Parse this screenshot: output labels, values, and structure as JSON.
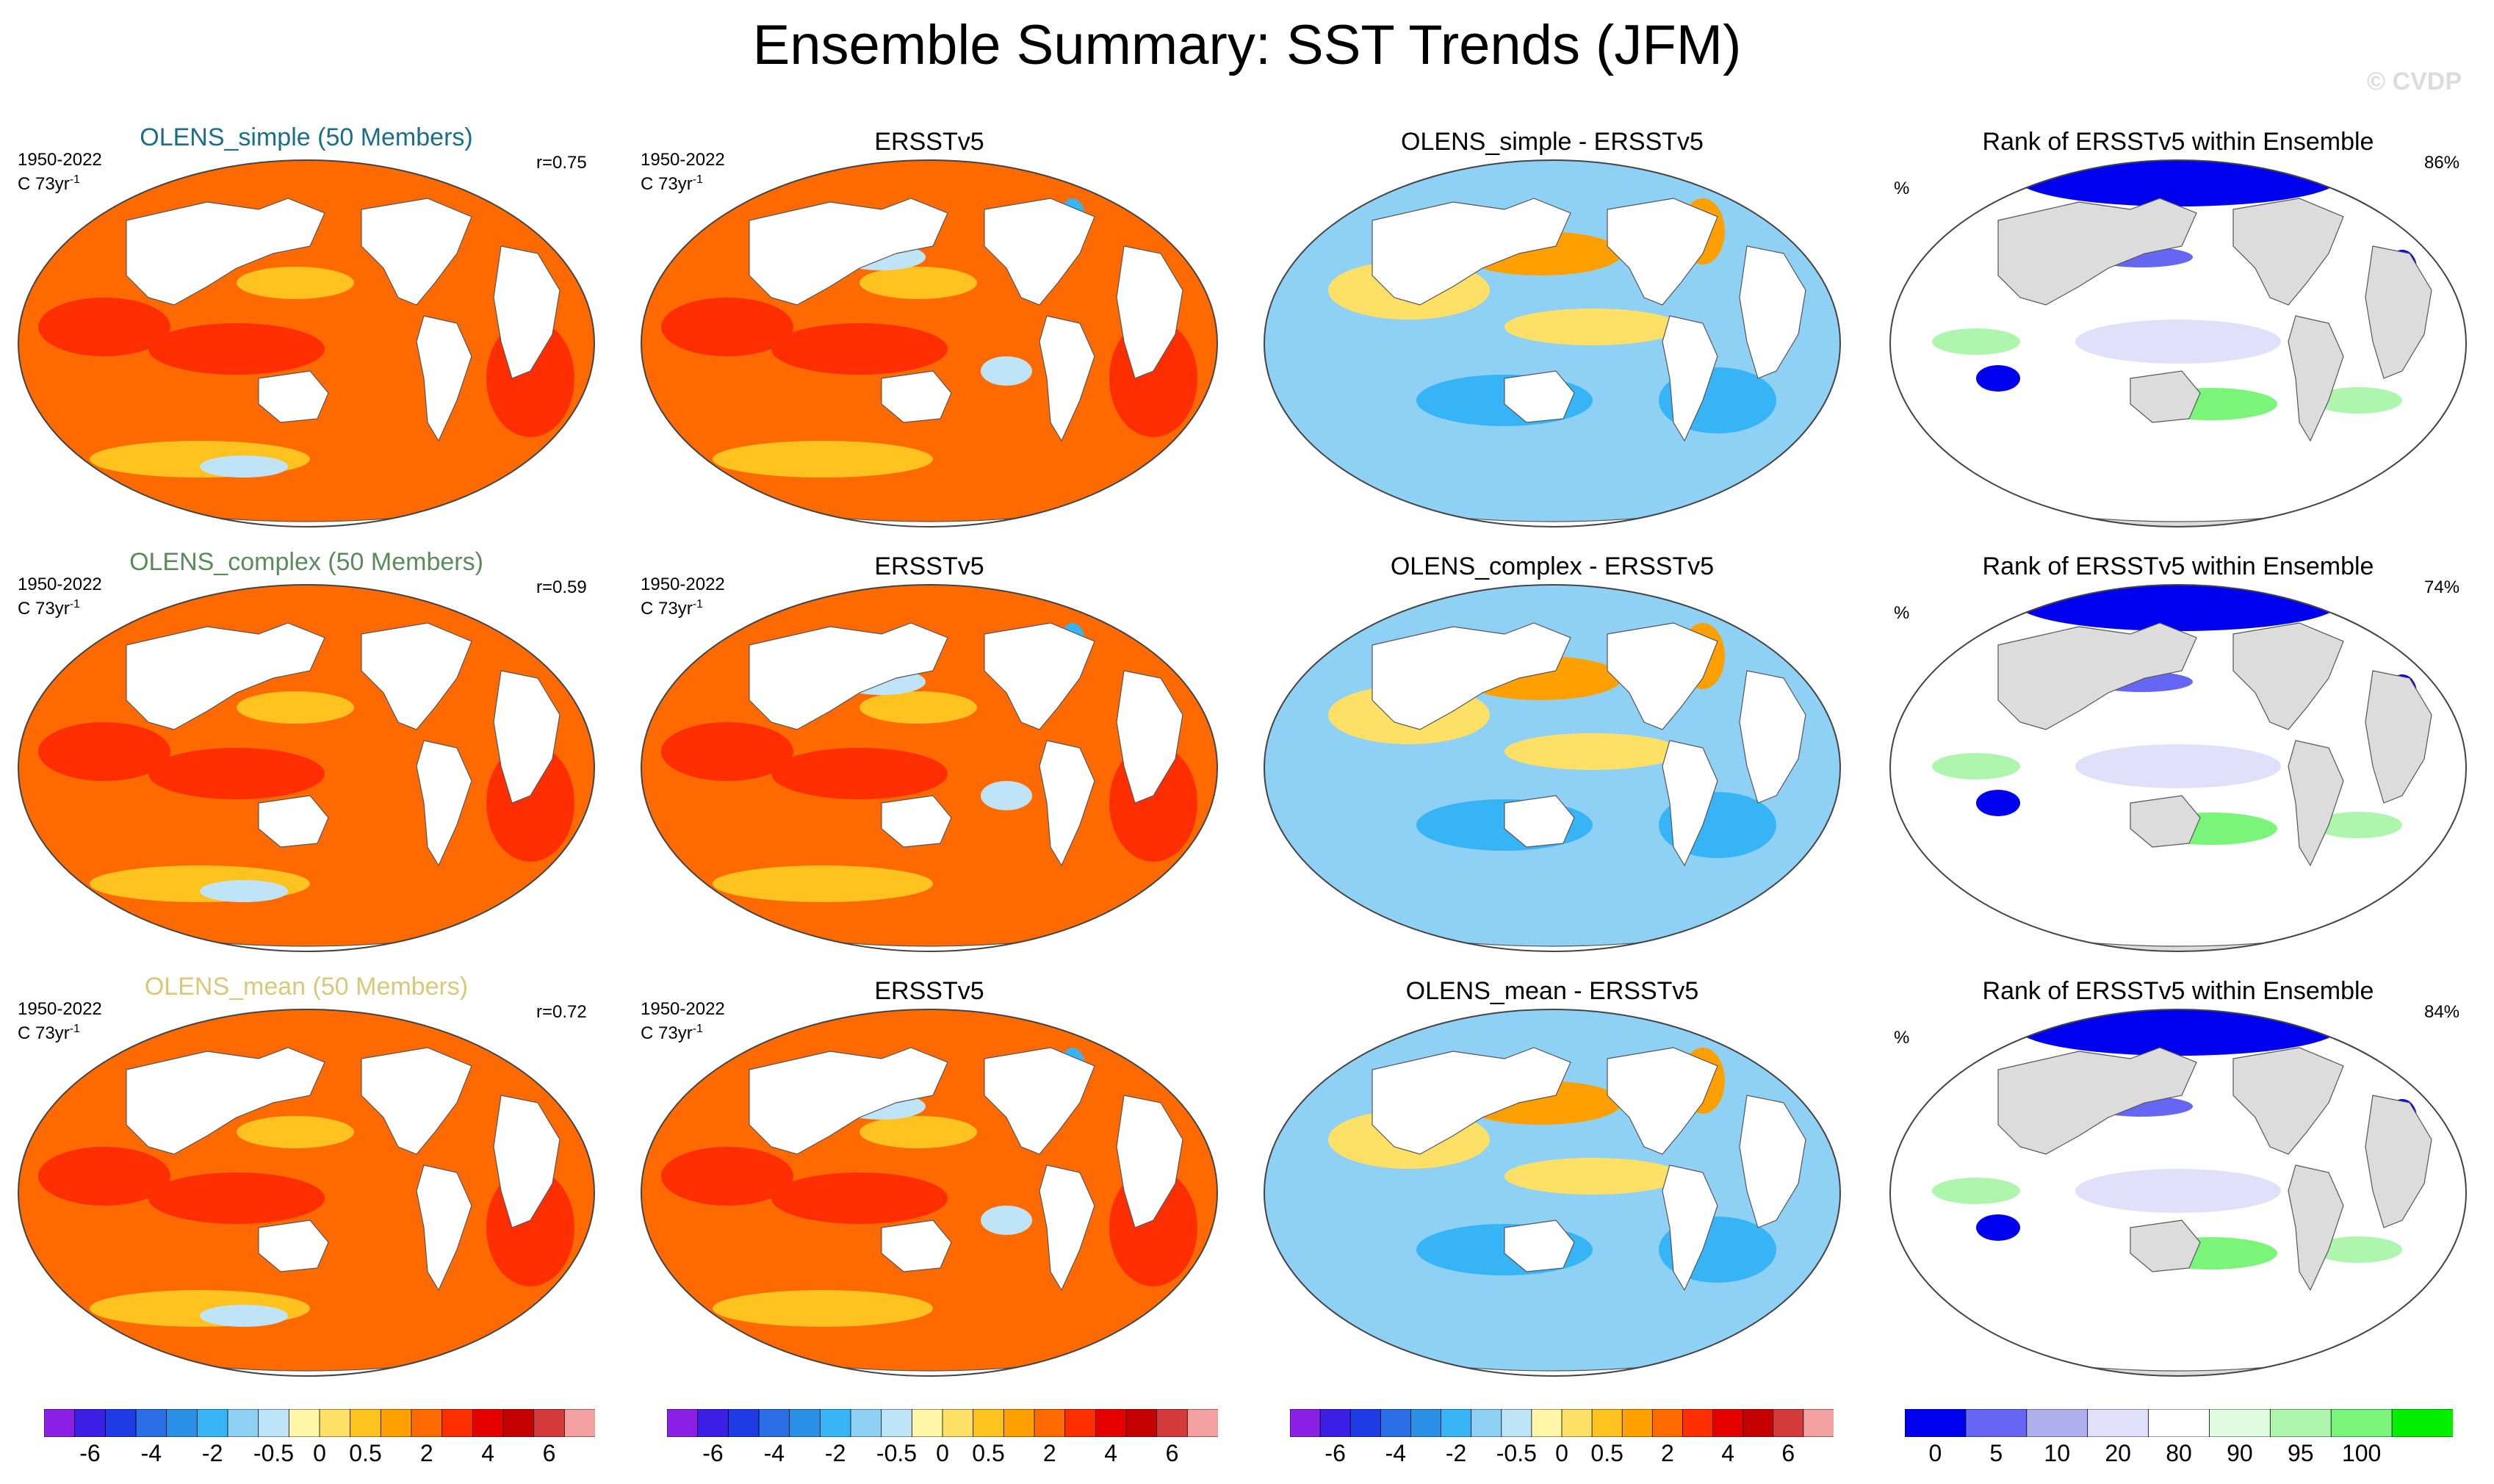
{
  "title": "Ensemble Summary: SST Trends (JFM)",
  "watermark": "© CVDP",
  "chart_data": {
    "type": "heatmap",
    "title": "Ensemble Summary: SST Trends (JFM)",
    "colors": {
      "model_simple": "#1a6e8c",
      "model_complex": "#5b8a5b",
      "model_mean": "#d8c878",
      "land": "#dcdcdc",
      "ocean_white": "#ffffff"
    },
    "rows": [
      {
        "name": "OLENS_simple",
        "panels": [
          {
            "kind": "model",
            "title": "OLENS_simple (50 Members)",
            "title_color": "#1a6e8c",
            "period": "1950-2022",
            "units": "C 73yr",
            "units_sup": "-1",
            "r": "r=0.75",
            "mean_level": 2
          },
          {
            "kind": "obs",
            "title": "ERSSTv5",
            "period": "1950-2022",
            "units": "C 73yr",
            "units_sup": "-1",
            "mean_level": 2
          },
          {
            "kind": "diff",
            "title": "OLENS_simple - ERSSTv5",
            "mean_level": -0.5
          },
          {
            "kind": "rank",
            "title": "Rank of ERSSTv5 within Ensemble",
            "unit": "%",
            "pct": "86%"
          }
        ]
      },
      {
        "name": "OLENS_complex",
        "panels": [
          {
            "kind": "model",
            "title": "OLENS_complex (50 Members)",
            "title_color": "#5b8a5b",
            "period": "1950-2022",
            "units": "C 73yr",
            "units_sup": "-1",
            "r": "r=0.59",
            "mean_level": 2
          },
          {
            "kind": "obs",
            "title": "ERSSTv5",
            "period": "1950-2022",
            "units": "C 73yr",
            "units_sup": "-1",
            "mean_level": 2
          },
          {
            "kind": "diff",
            "title": "OLENS_complex - ERSSTv5",
            "mean_level": -0.5
          },
          {
            "kind": "rank",
            "title": "Rank of ERSSTv5 within Ensemble",
            "unit": "%",
            "pct": "74%"
          }
        ]
      },
      {
        "name": "OLENS_mean",
        "panels": [
          {
            "kind": "model",
            "title": "OLENS_mean (50 Members)",
            "title_color": "#d8c878",
            "period": "1950-2022",
            "units": "C 73yr",
            "units_sup": "-1",
            "r": "r=0.72",
            "mean_level": 2
          },
          {
            "kind": "obs",
            "title": "ERSSTv5",
            "period": "1950-2022",
            "units": "C 73yr",
            "units_sup": "-1",
            "mean_level": 2
          },
          {
            "kind": "diff",
            "title": "OLENS_mean - ERSSTv5",
            "mean_level": -0.5
          },
          {
            "kind": "rank",
            "title": "Rank of ERSSTv5 within Ensemble",
            "unit": "%",
            "pct": "84%"
          }
        ]
      }
    ],
    "trend_colorbar": {
      "colors": [
        "#8c1fe6",
        "#3b1fe6",
        "#1f3be6",
        "#2a6ee6",
        "#2a8fe6",
        "#36b4f5",
        "#8fd0f5",
        "#bfe4f7",
        "#fff6a8",
        "#ffe066",
        "#ffc21f",
        "#ff9f00",
        "#ff6a00",
        "#ff2e00",
        "#e60000",
        "#c40000",
        "#d43a3a",
        "#f5a0a0"
      ],
      "tick_labels": [
        "-6",
        "-4",
        "-2",
        "-0.5",
        "0",
        "0.5",
        "2",
        "4",
        "6"
      ],
      "tick_positions": [
        1.5,
        3.5,
        5.5,
        7.5,
        9,
        10.5,
        12.5,
        14.5,
        16.5
      ]
    },
    "rank_colorbar": {
      "colors": [
        "#0000f0",
        "#6666f5",
        "#aeb0ee",
        "#e0e0fb",
        "#ffffff",
        "#e0fce0",
        "#aef5ae",
        "#7af57a",
        "#00f000"
      ],
      "tick_labels": [
        "0",
        "5",
        "10",
        "20",
        "80",
        "90",
        "95",
        "100"
      ],
      "tick_positions": [
        0.5,
        1.5,
        2.5,
        3.5,
        4.5,
        5.5,
        6.5,
        7.5
      ]
    }
  }
}
